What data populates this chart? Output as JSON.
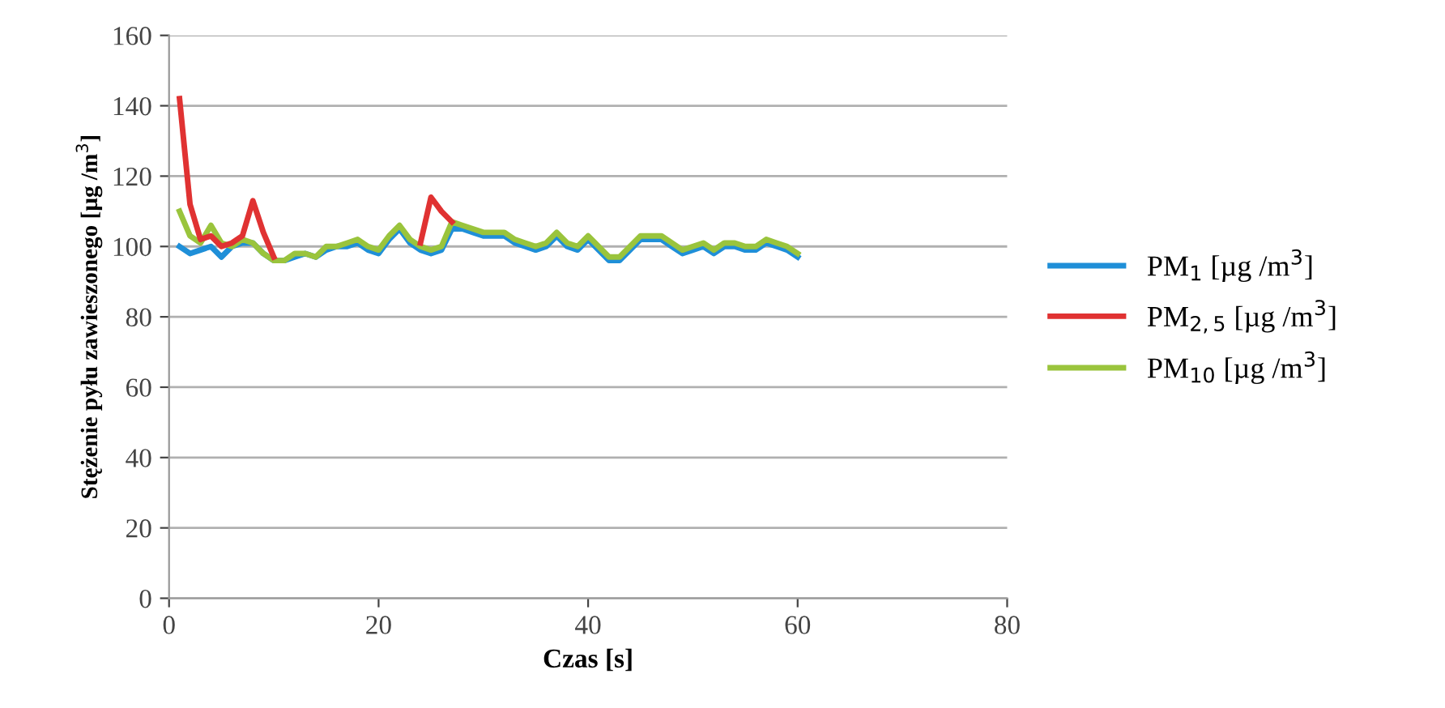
{
  "chart_data": {
    "type": "line",
    "xlabel": "Czas [s]",
    "ylabel": "Stężenie pyłu zawieszonego [µg /m$^{3}$]",
    "x": [
      1,
      2,
      3,
      4,
      5,
      6,
      7,
      8,
      9,
      10,
      11,
      12,
      13,
      14,
      15,
      16,
      17,
      18,
      19,
      20,
      21,
      22,
      23,
      24,
      25,
      26,
      27,
      28,
      29,
      30,
      31,
      32,
      33,
      34,
      35,
      36,
      37,
      38,
      39,
      40,
      41,
      42,
      43,
      44,
      45,
      46,
      47,
      48,
      49,
      50,
      51,
      52,
      53,
      54,
      55,
      56,
      57,
      58,
      59,
      60
    ],
    "series": [
      {
        "name": "PM$_{1}$ [µg /m$^{3}$]",
        "color": "#1f8fd8",
        "values": [
          100,
          98,
          99,
          100,
          97,
          100,
          101,
          101,
          98,
          96,
          96,
          97,
          98,
          97,
          99,
          100,
          100,
          101,
          99,
          98,
          102,
          105,
          101,
          99,
          98,
          99,
          105,
          105,
          104,
          103,
          103,
          103,
          101,
          100,
          99,
          100,
          103,
          100,
          99,
          102,
          99,
          96,
          96,
          99,
          102,
          102,
          102,
          100,
          98,
          99,
          100,
          98,
          100,
          100,
          99,
          99,
          101,
          100,
          99,
          97
        ]
      },
      {
        "name": "PM$_{2,5}$ [µg /m$^{3}$]",
        "color": "#e03232",
        "values": [
          142,
          112,
          102,
          103,
          100,
          101,
          103,
          113,
          104,
          97,
          null,
          null,
          null,
          null,
          null,
          null,
          null,
          null,
          null,
          null,
          null,
          null,
          null,
          101,
          114,
          110,
          107,
          null,
          null,
          null,
          null,
          null,
          null,
          null,
          null,
          null,
          null,
          null,
          null,
          null,
          null,
          null,
          null,
          null,
          null,
          null,
          null,
          null,
          null,
          null,
          null,
          null,
          null,
          null,
          null,
          null,
          null,
          null,
          null,
          null
        ]
      },
      {
        "name": "PM$_{10}$ [µg /m$^{3}$]",
        "color": "#9ac43c",
        "values": [
          110,
          103,
          101,
          106,
          101,
          100,
          102,
          101,
          98,
          96,
          96,
          98,
          98,
          97,
          100,
          100,
          101,
          102,
          100,
          99,
          103,
          106,
          102,
          100,
          99,
          100,
          107,
          106,
          105,
          104,
          104,
          104,
          102,
          101,
          100,
          101,
          104,
          101,
          100,
          103,
          100,
          97,
          97,
          100,
          103,
          103,
          103,
          101,
          99,
          100,
          101,
          99,
          101,
          101,
          100,
          100,
          102,
          101,
          100,
          98
        ]
      }
    ],
    "xlim": [
      0,
      80
    ],
    "xticks": [
      0,
      20,
      40,
      60,
      80
    ],
    "ylim": [
      0,
      160
    ],
    "yticks": [
      0,
      20,
      40,
      60,
      80,
      100,
      120,
      140,
      160
    ],
    "grid": "y",
    "legend": "right",
    "marker": "none",
    "line_style": "solid"
  }
}
